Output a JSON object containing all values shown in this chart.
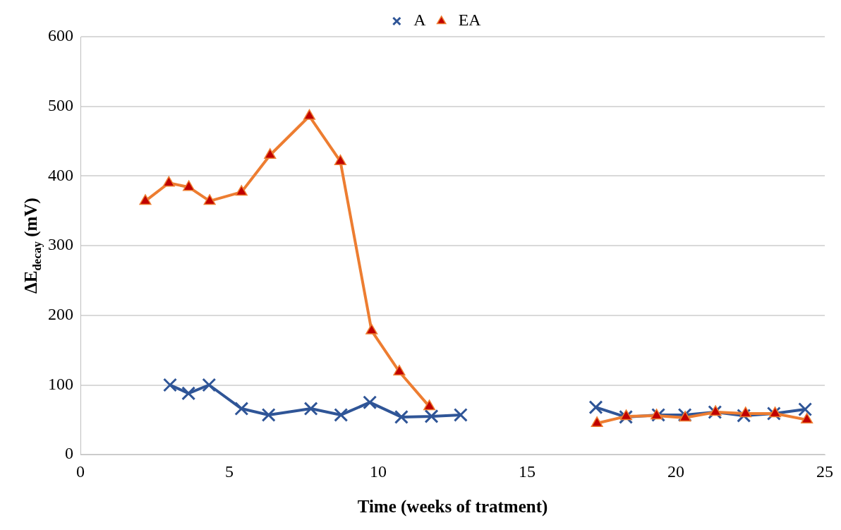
{
  "chart_data": {
    "type": "line",
    "xlabel": "Time (weeks of tratment)",
    "ylabel": "ΔE$_{decay}$ (mV)",
    "xlim": [
      0,
      25
    ],
    "xticks": [
      0,
      5,
      10,
      15,
      20,
      25
    ],
    "ylim": [
      0,
      600
    ],
    "yticks": [
      0,
      100,
      200,
      300,
      400,
      500,
      600
    ],
    "grid": "y",
    "legend": "top",
    "series": [
      {
        "name": "A",
        "color": "#2f5597",
        "marker": "cross",
        "x": [
          3.01,
          3.63,
          4.32,
          5.41,
          6.32,
          7.74,
          8.75,
          9.72,
          10.78,
          11.79,
          12.77,
          null,
          17.31,
          18.32,
          19.41,
          20.3,
          21.31,
          22.28,
          23.29,
          24.34
        ],
        "values": [
          100,
          88,
          100,
          66,
          57,
          66,
          57,
          75,
          54,
          55,
          57,
          null,
          68,
          54,
          57,
          57,
          61,
          56,
          59,
          65
        ]
      },
      {
        "name": "EA",
        "color": "#ed7d31",
        "marker": "triangle",
        "x": [
          2.18,
          2.97,
          3.64,
          4.34,
          5.41,
          6.37,
          7.69,
          8.73,
          9.78,
          10.71,
          11.72,
          null,
          17.35,
          18.33,
          19.35,
          20.31,
          21.33,
          22.34,
          23.33,
          24.4
        ],
        "values": [
          364,
          390,
          384,
          364,
          377,
          430,
          486,
          421,
          178,
          119,
          69,
          null,
          45,
          55,
          56,
          53,
          61,
          59,
          59,
          50
        ]
      }
    ]
  }
}
